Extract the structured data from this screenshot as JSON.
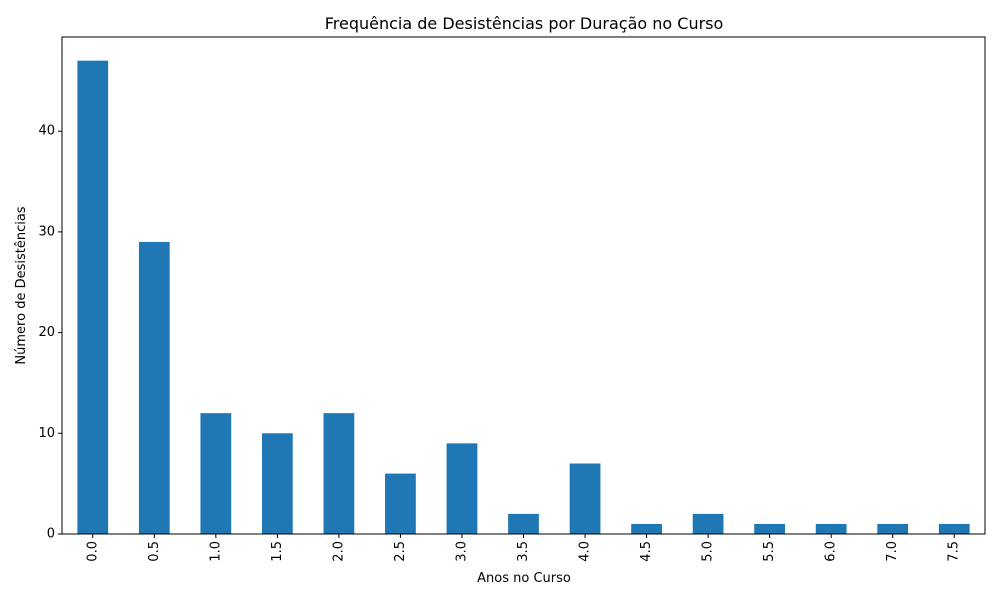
{
  "chart_data": {
    "type": "bar",
    "title": "Frequência de Desistências por Duração no Curso",
    "xlabel": "Anos no Curso",
    "ylabel": "Número de Desistências",
    "categories": [
      "0.0",
      "0.5",
      "1.0",
      "1.5",
      "2.0",
      "2.5",
      "3.0",
      "3.5",
      "4.0",
      "4.5",
      "5.0",
      "5.5",
      "6.0",
      "7.0",
      "7.5"
    ],
    "values": [
      47,
      29,
      12,
      10,
      12,
      6,
      9,
      2,
      7,
      1,
      2,
      1,
      1,
      1,
      1
    ],
    "ylim": [
      0,
      49.35
    ],
    "yticks": [
      0,
      10,
      20,
      30,
      40
    ],
    "grid": false,
    "bar_color": "#1f77b4"
  }
}
